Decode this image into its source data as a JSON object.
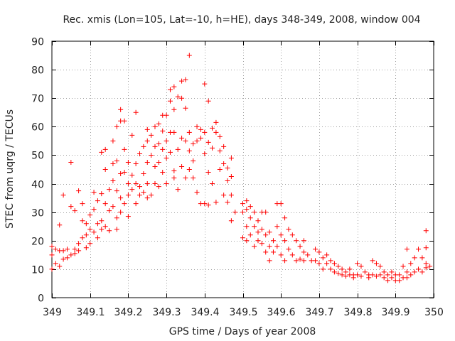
{
  "chart_data": {
    "type": "scatter",
    "title": "Rec. xmis (Lon=105, Lat=-10, h=HE), days 348-349, 2008, window 004",
    "xlabel": "GPS time / Days of year 2008",
    "ylabel": "STEC from uqrg / TECUs",
    "xlim": [
      349,
      350
    ],
    "ylim": [
      0,
      90
    ],
    "grid": true,
    "marker": "plus",
    "color": "#ff0000",
    "x_ticks": [
      "349",
      "349.1",
      "349.2",
      "349.3",
      "349.4",
      "349.5",
      "349.6",
      "349.7",
      "349.8",
      "349.9",
      "350"
    ],
    "x_tick_values": [
      349,
      349.1,
      349.2,
      349.3,
      349.4,
      349.5,
      349.6,
      349.7,
      349.8,
      349.9,
      350
    ],
    "y_ticks": [
      "0",
      "10",
      "20",
      "30",
      "40",
      "50",
      "60",
      "70",
      "80",
      "90"
    ],
    "y_tick_values": [
      0,
      10,
      20,
      30,
      40,
      50,
      60,
      70,
      80,
      90
    ],
    "series": [
      {
        "name": "STEC",
        "points": [
          [
            349.0,
            18
          ],
          [
            349.0,
            15
          ],
          [
            349.01,
            17
          ],
          [
            349.01,
            12
          ],
          [
            349.0,
            10
          ],
          [
            349.02,
            25.5
          ],
          [
            349.02,
            16.5
          ],
          [
            349.02,
            11
          ],
          [
            349.03,
            13.5
          ],
          [
            349.03,
            16.5
          ],
          [
            349.03,
            36
          ],
          [
            349.04,
            14
          ],
          [
            349.04,
            17
          ],
          [
            349.05,
            15
          ],
          [
            349.05,
            32
          ],
          [
            349.05,
            47.5
          ],
          [
            349.06,
            17
          ],
          [
            349.06,
            15.5
          ],
          [
            349.06,
            30.5
          ],
          [
            349.07,
            19
          ],
          [
            349.07,
            37.5
          ],
          [
            349.07,
            16.5
          ],
          [
            349.08,
            21
          ],
          [
            349.08,
            27
          ],
          [
            349.08,
            33
          ],
          [
            349.09,
            17.5
          ],
          [
            349.09,
            22
          ],
          [
            349.09,
            26
          ],
          [
            349.1,
            24
          ],
          [
            349.1,
            29
          ],
          [
            349.1,
            19
          ],
          [
            349.11,
            31
          ],
          [
            349.11,
            23
          ],
          [
            349.11,
            37
          ],
          [
            349.12,
            26
          ],
          [
            349.12,
            21
          ],
          [
            349.12,
            34
          ],
          [
            349.13,
            51
          ],
          [
            349.13,
            36.5
          ],
          [
            349.13,
            27
          ],
          [
            349.13,
            24
          ],
          [
            349.14,
            45
          ],
          [
            349.14,
            52
          ],
          [
            349.14,
            33
          ],
          [
            349.14,
            25
          ],
          [
            349.15,
            38
          ],
          [
            349.15,
            30.5
          ],
          [
            349.15,
            23.5
          ],
          [
            349.16,
            55
          ],
          [
            349.16,
            47
          ],
          [
            349.16,
            41
          ],
          [
            349.16,
            32
          ],
          [
            349.17,
            60
          ],
          [
            349.17,
            48
          ],
          [
            349.17,
            37.5
          ],
          [
            349.17,
            28
          ],
          [
            349.17,
            24
          ],
          [
            349.18,
            66
          ],
          [
            349.18,
            62
          ],
          [
            349.18,
            43.5
          ],
          [
            349.18,
            35
          ],
          [
            349.18,
            30
          ],
          [
            349.19,
            52
          ],
          [
            349.19,
            62
          ],
          [
            349.19,
            44
          ],
          [
            349.19,
            33
          ],
          [
            349.2,
            47.5
          ],
          [
            349.2,
            40
          ],
          [
            349.2,
            28.5
          ],
          [
            349.2,
            36
          ],
          [
            349.21,
            57
          ],
          [
            349.21,
            43
          ],
          [
            349.21,
            38
          ],
          [
            349.22,
            65
          ],
          [
            349.22,
            47
          ],
          [
            349.22,
            40
          ],
          [
            349.22,
            33
          ],
          [
            349.23,
            50.5
          ],
          [
            349.23,
            39
          ],
          [
            349.23,
            36
          ],
          [
            349.24,
            53
          ],
          [
            349.24,
            43.5
          ],
          [
            349.24,
            37
          ],
          [
            349.25,
            59
          ],
          [
            349.25,
            55
          ],
          [
            349.25,
            47.5
          ],
          [
            349.25,
            40
          ],
          [
            349.25,
            35
          ],
          [
            349.26,
            57
          ],
          [
            349.26,
            50
          ],
          [
            349.26,
            36
          ],
          [
            349.27,
            60
          ],
          [
            349.27,
            53
          ],
          [
            349.27,
            46
          ],
          [
            349.27,
            40
          ],
          [
            349.28,
            61
          ],
          [
            349.28,
            54
          ],
          [
            349.28,
            47.5
          ],
          [
            349.28,
            39
          ],
          [
            349.29,
            64
          ],
          [
            349.29,
            58.5
          ],
          [
            349.29,
            52
          ],
          [
            349.29,
            44
          ],
          [
            349.3,
            64
          ],
          [
            349.3,
            55
          ],
          [
            349.3,
            49
          ],
          [
            349.3,
            40
          ],
          [
            349.31,
            73
          ],
          [
            349.31,
            69
          ],
          [
            349.31,
            58
          ],
          [
            349.31,
            51
          ],
          [
            349.32,
            74
          ],
          [
            349.32,
            66
          ],
          [
            349.32,
            58
          ],
          [
            349.32,
            44.5
          ],
          [
            349.32,
            42
          ],
          [
            349.33,
            70.5
          ],
          [
            349.33,
            52
          ],
          [
            349.33,
            38
          ],
          [
            349.34,
            76
          ],
          [
            349.34,
            70
          ],
          [
            349.34,
            56
          ],
          [
            349.34,
            46
          ],
          [
            349.35,
            76.5
          ],
          [
            349.35,
            66.5
          ],
          [
            349.35,
            55
          ],
          [
            349.35,
            42
          ],
          [
            349.36,
            85
          ],
          [
            349.36,
            58
          ],
          [
            349.36,
            51.5
          ],
          [
            349.36,
            45
          ],
          [
            349.37,
            54
          ],
          [
            349.37,
            48
          ],
          [
            349.37,
            42
          ],
          [
            349.38,
            60
          ],
          [
            349.38,
            55
          ],
          [
            349.38,
            37
          ],
          [
            349.39,
            59
          ],
          [
            349.39,
            56
          ],
          [
            349.39,
            33
          ],
          [
            349.4,
            75
          ],
          [
            349.4,
            58
          ],
          [
            349.4,
            50.5
          ],
          [
            349.4,
            33
          ],
          [
            349.41,
            69
          ],
          [
            349.41,
            54.5
          ],
          [
            349.41,
            44
          ],
          [
            349.41,
            32.5
          ],
          [
            349.42,
            59.5
          ],
          [
            349.42,
            52.5
          ],
          [
            349.42,
            40
          ],
          [
            349.43,
            61.5
          ],
          [
            349.43,
            58
          ],
          [
            349.43,
            33.5
          ],
          [
            349.44,
            56.5
          ],
          [
            349.44,
            51.5
          ],
          [
            349.44,
            45
          ],
          [
            349.45,
            53
          ],
          [
            349.45,
            47
          ],
          [
            349.45,
            36
          ],
          [
            349.46,
            45.5
          ],
          [
            349.46,
            41
          ],
          [
            349.46,
            33.5
          ],
          [
            349.47,
            49
          ],
          [
            349.47,
            42.5
          ],
          [
            349.47,
            36
          ],
          [
            349.47,
            27
          ],
          [
            349.48,
            30
          ],
          [
            349.5,
            33
          ],
          [
            349.5,
            30
          ],
          [
            349.5,
            21
          ],
          [
            349.51,
            34
          ],
          [
            349.51,
            31
          ],
          [
            349.51,
            25
          ],
          [
            349.51,
            20
          ],
          [
            349.52,
            32
          ],
          [
            349.52,
            28
          ],
          [
            349.52,
            22
          ],
          [
            349.53,
            30
          ],
          [
            349.53,
            25
          ],
          [
            349.53,
            18
          ],
          [
            349.54,
            27
          ],
          [
            349.54,
            23
          ],
          [
            349.54,
            20
          ],
          [
            349.55,
            30
          ],
          [
            349.55,
            24
          ],
          [
            349.55,
            19
          ],
          [
            349.56,
            30
          ],
          [
            349.56,
            22
          ],
          [
            349.56,
            16
          ],
          [
            349.57,
            23
          ],
          [
            349.57,
            18
          ],
          [
            349.57,
            13
          ],
          [
            349.58,
            20
          ],
          [
            349.58,
            16
          ],
          [
            349.59,
            33
          ],
          [
            349.59,
            25
          ],
          [
            349.59,
            18
          ],
          [
            349.6,
            33
          ],
          [
            349.6,
            22
          ],
          [
            349.6,
            15
          ],
          [
            349.61,
            28
          ],
          [
            349.61,
            20
          ],
          [
            349.61,
            13
          ],
          [
            349.62,
            24
          ],
          [
            349.62,
            17
          ],
          [
            349.63,
            22
          ],
          [
            349.63,
            15
          ],
          [
            349.64,
            20
          ],
          [
            349.64,
            13
          ],
          [
            349.65,
            18
          ],
          [
            349.65,
            13.5
          ],
          [
            349.66,
            20
          ],
          [
            349.66,
            16
          ],
          [
            349.66,
            13
          ],
          [
            349.67,
            15
          ],
          [
            349.68,
            13
          ],
          [
            349.69,
            17
          ],
          [
            349.69,
            13
          ],
          [
            349.7,
            16
          ],
          [
            349.7,
            12
          ],
          [
            349.71,
            14
          ],
          [
            349.71,
            10
          ],
          [
            349.72,
            15
          ],
          [
            349.72,
            12
          ],
          [
            349.73,
            13
          ],
          [
            349.73,
            10
          ],
          [
            349.74,
            12
          ],
          [
            349.74,
            9
          ],
          [
            349.75,
            11
          ],
          [
            349.75,
            8.5
          ],
          [
            349.76,
            10
          ],
          [
            349.76,
            8
          ],
          [
            349.77,
            9
          ],
          [
            349.77,
            7.5
          ],
          [
            349.78,
            10
          ],
          [
            349.78,
            8
          ],
          [
            349.79,
            8
          ],
          [
            349.79,
            7
          ],
          [
            349.8,
            12
          ],
          [
            349.8,
            8
          ],
          [
            349.81,
            11
          ],
          [
            349.81,
            7.5
          ],
          [
            349.82,
            9
          ],
          [
            349.83,
            8
          ],
          [
            349.83,
            7
          ],
          [
            349.84,
            13
          ],
          [
            349.84,
            8
          ],
          [
            349.85,
            12
          ],
          [
            349.85,
            7.5
          ],
          [
            349.86,
            11
          ],
          [
            349.86,
            8
          ],
          [
            349.87,
            9
          ],
          [
            349.87,
            7
          ],
          [
            349.88,
            8
          ],
          [
            349.88,
            6
          ],
          [
            349.89,
            9
          ],
          [
            349.89,
            7
          ],
          [
            349.9,
            8
          ],
          [
            349.9,
            6
          ],
          [
            349.91,
            8
          ],
          [
            349.91,
            6
          ],
          [
            349.92,
            11
          ],
          [
            349.92,
            7
          ],
          [
            349.93,
            17
          ],
          [
            349.93,
            9
          ],
          [
            349.93,
            7
          ],
          [
            349.94,
            12
          ],
          [
            349.94,
            8
          ],
          [
            349.95,
            14
          ],
          [
            349.95,
            9
          ],
          [
            349.96,
            17
          ],
          [
            349.96,
            10
          ],
          [
            349.97,
            14
          ],
          [
            349.97,
            9
          ],
          [
            349.98,
            23.5
          ],
          [
            349.98,
            17.5
          ],
          [
            349.98,
            12
          ],
          [
            349.98,
            10.5
          ],
          [
            349.99,
            11
          ]
        ]
      }
    ]
  }
}
